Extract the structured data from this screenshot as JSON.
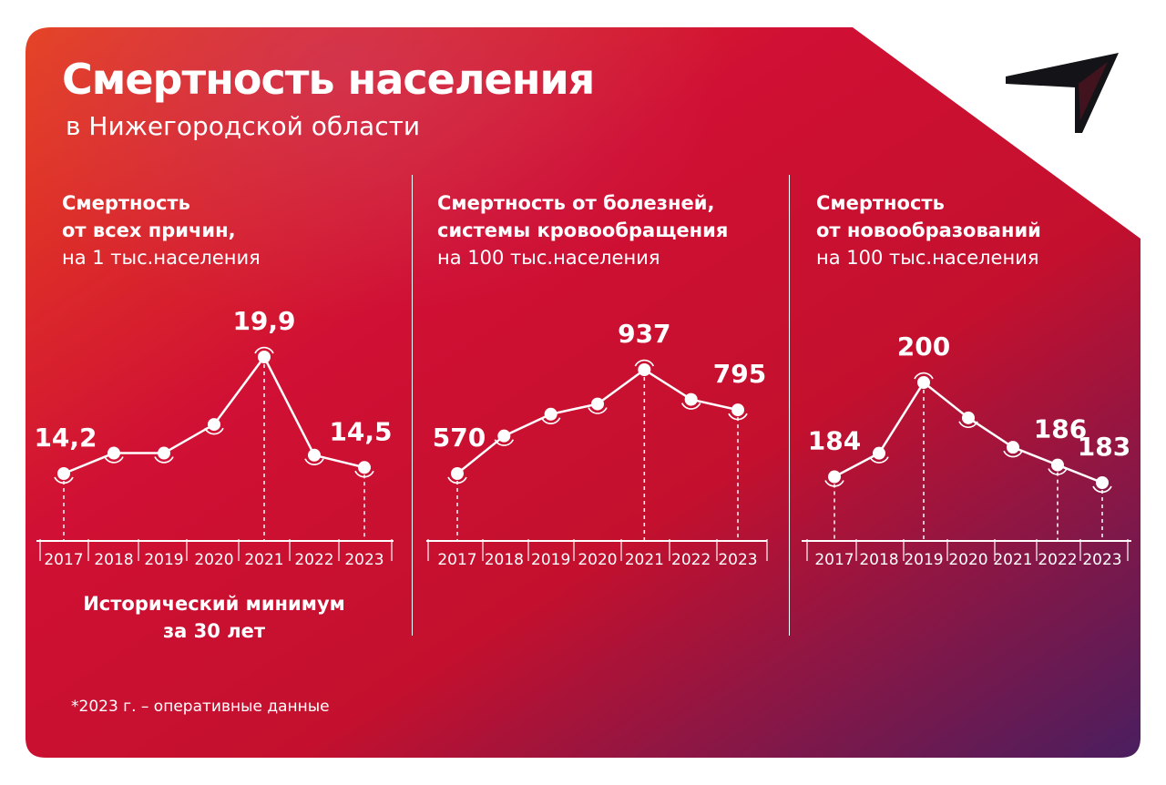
{
  "header": {
    "title": "Смертность населения",
    "subtitle": "в Нижегородской области"
  },
  "footnote": "*2023 г. – оперативные данные",
  "caption": {
    "line1": "Исторический минимум",
    "line2": "за 30 лет"
  },
  "colors": {
    "background_start": "#e8461f",
    "background_mid": "#c8102e",
    "background_end": "#4a1e5f",
    "text": "#ffffff"
  },
  "logo_icon": "arrow-t-logo-icon",
  "chart_data": [
    {
      "type": "line",
      "title_bold": [
        "Смертность",
        "от всех причин,"
      ],
      "title_regular": "на 1 тыс.населения",
      "categories": [
        "2017",
        "2018",
        "2019",
        "2020",
        "2021",
        "2022",
        "2023"
      ],
      "values": [
        14.2,
        15.2,
        15.2,
        16.6,
        19.9,
        15.1,
        14.5
      ],
      "value_labels": [
        {
          "index": 0,
          "text": "14,2"
        },
        {
          "index": 4,
          "text": "19,9"
        },
        {
          "index": 6,
          "text": "14,5"
        }
      ],
      "ylim": [
        10,
        22
      ]
    },
    {
      "type": "line",
      "title_bold": [
        "Смертность от болезней,",
        "системы кровообращения"
      ],
      "title_regular": "на 100 тыс.населения",
      "categories": [
        "2017",
        "2018",
        "2019",
        "2020",
        "2021",
        "2022",
        "2023"
      ],
      "values": [
        570,
        703,
        780,
        816,
        937,
        832,
        795
      ],
      "value_labels": [
        {
          "index": 0,
          "text": "570"
        },
        {
          "index": 4,
          "text": "937"
        },
        {
          "index": 6,
          "text": "795"
        }
      ],
      "ylim": [
        300,
        1100
      ]
    },
    {
      "type": "line",
      "title_bold": [
        "Смертность",
        "от новообразований"
      ],
      "title_regular": "на 100 тыс.населения",
      "categories": [
        "2017",
        "2018",
        "2019",
        "2020",
        "2021",
        "2022",
        "2023"
      ],
      "values": [
        184,
        188,
        200,
        194,
        189,
        186,
        183
      ],
      "value_labels": [
        {
          "index": 0,
          "text": "184"
        },
        {
          "index": 2,
          "text": "200"
        },
        {
          "index": 5,
          "text": "186"
        },
        {
          "index": 6,
          "text": "183"
        }
      ],
      "ylim": [
        165,
        210
      ]
    }
  ]
}
